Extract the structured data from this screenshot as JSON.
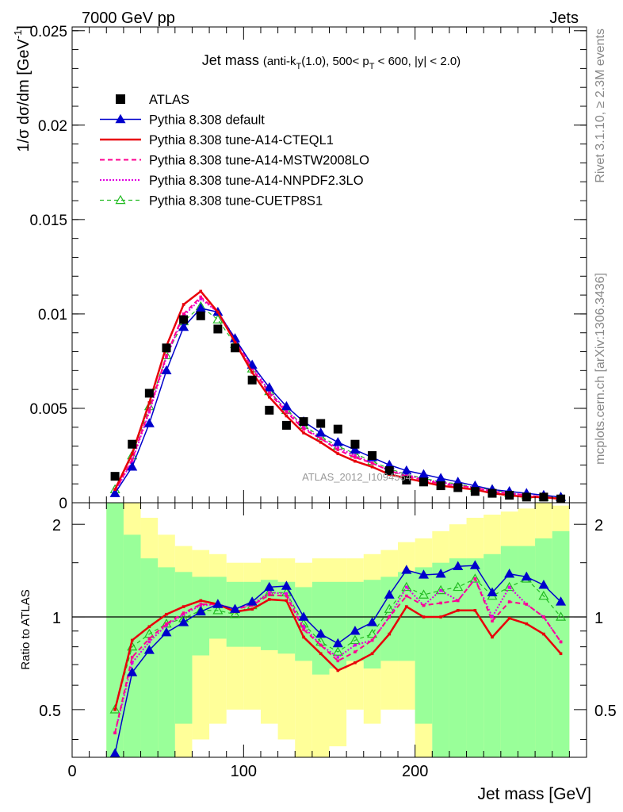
{
  "header": {
    "left": "7000 GeV pp",
    "right": "Jets"
  },
  "side_labels": {
    "rivet": "Rivet 3.1.10, ≥ 2.3M events",
    "mcplots": "mcplots.cern.ch [arXiv:1306.3436]"
  },
  "watermark": "ATLAS_2012_I1094564",
  "colors": {
    "atlas": "#000000",
    "default": "#0000cc",
    "cteql1": "#e8000a",
    "mstw": "#ff0090",
    "nnpdf": "#e000e0",
    "cuetp8s1": "#22bb22",
    "band_inner": "#99ff99",
    "band_outer": "#ffff99"
  },
  "chart_data": [
    {
      "type": "line",
      "title": "Jet mass (anti-k_T(1.0), 500< p_T < 600, |y| < 2.0)",
      "title_parts": {
        "main": "Jet mass",
        "detail_a": "(anti-k",
        "sub_t1": "T",
        "detail_b": "(1.0), 500< p",
        "sub_t2": "T",
        "detail_c": " < 600, |y| < 2.0)"
      },
      "ylabel": "1/σ dσ/dm [GeV⁻¹]",
      "ylabel_parts": {
        "main": "1/σ dσ/dm [GeV",
        "sup": "-1",
        "close": "]"
      },
      "xlim": [
        0,
        300
      ],
      "ylim": [
        0,
        0.0252
      ],
      "yticks": [
        0,
        0.005,
        0.01,
        0.015,
        0.02,
        0.025
      ],
      "ytick_labels": [
        "0",
        "0.005",
        "0.01",
        "0.015",
        "0.02",
        "0.025"
      ],
      "legend_position": "top-left",
      "x": [
        25,
        35,
        45,
        55,
        65,
        75,
        85,
        95,
        105,
        115,
        125,
        135,
        145,
        155,
        165,
        175,
        185,
        195,
        205,
        215,
        225,
        235,
        245,
        255,
        265,
        275,
        285
      ],
      "series": [
        {
          "name": "ATLAS",
          "key": "atlas",
          "style": "markers",
          "values": [
            0.0014,
            0.0031,
            0.0058,
            0.0082,
            0.0097,
            0.0099,
            0.0092,
            0.0082,
            0.0065,
            0.0049,
            0.0041,
            0.0043,
            0.0042,
            0.0039,
            0.0031,
            0.0025,
            0.0017,
            0.0012,
            0.0011,
            0.0009,
            0.0008,
            0.0006,
            0.0005,
            0.0004,
            0.0003,
            0.0003,
            0.0002
          ]
        },
        {
          "name": "Pythia 8.308 default",
          "key": "default",
          "style": "line-tri",
          "values": [
            0.0005,
            0.0019,
            0.0042,
            0.007,
            0.0093,
            0.0103,
            0.0101,
            0.0087,
            0.0073,
            0.0061,
            0.0051,
            0.0043,
            0.0037,
            0.0032,
            0.0028,
            0.0024,
            0.002,
            0.0017,
            0.0015,
            0.0013,
            0.0011,
            0.0009,
            0.0007,
            0.0006,
            0.0005,
            0.0004,
            0.0003
          ]
        },
        {
          "name": "Pythia 8.308 tune-A14-CTEQL1",
          "key": "cteql1",
          "style": "solid",
          "values": [
            0.0007,
            0.0026,
            0.0053,
            0.0083,
            0.0105,
            0.0112,
            0.0101,
            0.0085,
            0.0069,
            0.0056,
            0.0046,
            0.0037,
            0.0032,
            0.0026,
            0.0022,
            0.0019,
            0.0015,
            0.0013,
            0.0011,
            0.0009,
            0.0008,
            0.0007,
            0.0005,
            0.0004,
            0.0003,
            0.0003,
            0.0002
          ]
        },
        {
          "name": "Pythia 8.308 tune-A14-MSTW2008LO",
          "key": "mstw",
          "style": "dashed",
          "values": [
            0.0006,
            0.0023,
            0.0049,
            0.0078,
            0.01,
            0.0109,
            0.0101,
            0.0087,
            0.0071,
            0.0058,
            0.0048,
            0.0039,
            0.0034,
            0.0028,
            0.0024,
            0.0021,
            0.0017,
            0.0014,
            0.0012,
            0.001,
            0.0009,
            0.0008,
            0.0006,
            0.0005,
            0.0004,
            0.0003,
            0.0002
          ]
        },
        {
          "name": "Pythia 8.308 tune-A14-NNPDF2.3LO",
          "key": "nnpdf",
          "style": "dotted",
          "values": [
            0.0006,
            0.0022,
            0.0048,
            0.0077,
            0.0099,
            0.0108,
            0.0101,
            0.0087,
            0.0072,
            0.0059,
            0.0049,
            0.004,
            0.0034,
            0.0029,
            0.0025,
            0.0021,
            0.0017,
            0.0015,
            0.0012,
            0.0011,
            0.0009,
            0.0008,
            0.0006,
            0.0005,
            0.0004,
            0.0003,
            0.0002
          ]
        },
        {
          "name": "Pythia 8.308 tune-CUETP8S1",
          "key": "cuetp8s1",
          "style": "dashed-tri",
          "values": [
            0.0007,
            0.0025,
            0.0051,
            0.0078,
            0.0096,
            0.0104,
            0.0097,
            0.0084,
            0.0071,
            0.0059,
            0.0049,
            0.0041,
            0.0035,
            0.003,
            0.0026,
            0.0022,
            0.0018,
            0.0015,
            0.0013,
            0.0011,
            0.001,
            0.0008,
            0.0007,
            0.0005,
            0.0004,
            0.0003,
            0.0003
          ]
        }
      ]
    },
    {
      "type": "line",
      "ylabel": "Ratio to ATLAS",
      "xlabel": "Jet mass [GeV]",
      "xlim": [
        0,
        300
      ],
      "ylim": [
        0.35,
        2.35
      ],
      "log_y": true,
      "xticks": [
        0,
        100,
        200
      ],
      "xtick_labels": [
        "0",
        "100",
        "200"
      ],
      "yticks": [
        0.5,
        1,
        2
      ],
      "ytick_labels": [
        "0.5",
        "1",
        "2"
      ],
      "x": [
        25,
        35,
        45,
        55,
        65,
        75,
        85,
        95,
        105,
        115,
        125,
        135,
        145,
        155,
        165,
        175,
        185,
        195,
        205,
        215,
        225,
        235,
        245,
        255,
        265,
        275,
        285
      ],
      "bands": {
        "edges": [
          20,
          30,
          40,
          50,
          60,
          70,
          80,
          90,
          100,
          110,
          120,
          130,
          140,
          150,
          160,
          170,
          180,
          190,
          200,
          210,
          220,
          230,
          240,
          250,
          260,
          270,
          280,
          290
        ],
        "inner_low": [
          0.35,
          0.35,
          0.35,
          0.35,
          0.45,
          0.75,
          0.85,
          0.8,
          0.8,
          0.78,
          0.76,
          0.72,
          0.65,
          0.68,
          0.72,
          0.68,
          0.72,
          0.72,
          0.45,
          0.35,
          0.35,
          0.35,
          0.35,
          0.35,
          0.35,
          0.35,
          0.35
        ],
        "inner_high": [
          2.35,
          1.85,
          1.55,
          1.45,
          1.4,
          1.35,
          1.35,
          1.3,
          1.3,
          1.32,
          1.3,
          1.25,
          1.3,
          1.3,
          1.3,
          1.32,
          1.35,
          1.4,
          1.45,
          1.5,
          1.55,
          1.55,
          1.6,
          1.7,
          1.7,
          1.8,
          1.9
        ],
        "outer_low": [
          0.35,
          0.35,
          0.35,
          0.35,
          0.35,
          0.4,
          0.45,
          0.5,
          0.5,
          0.45,
          0.4,
          0.35,
          0.35,
          0.38,
          0.5,
          0.45,
          0.5,
          0.5,
          0.35,
          0.35,
          0.35,
          0.35,
          0.35,
          0.35,
          0.35,
          0.35,
          0.35
        ],
        "outer_high": [
          2.35,
          2.35,
          2.1,
          1.85,
          1.7,
          1.65,
          1.6,
          1.5,
          1.5,
          1.55,
          1.55,
          1.5,
          1.55,
          1.55,
          1.55,
          1.6,
          1.65,
          1.75,
          1.8,
          1.9,
          2.0,
          2.1,
          2.15,
          2.2,
          2.25,
          2.35,
          2.3
        ]
      },
      "series": [
        {
          "name": "Pythia 8.308 default",
          "key": "default",
          "style": "line-tri",
          "values": [
            0.36,
            0.66,
            0.78,
            0.89,
            0.96,
            1.04,
            1.1,
            1.06,
            1.12,
            1.25,
            1.26,
            1.0,
            0.88,
            0.82,
            0.9,
            0.96,
            1.18,
            1.42,
            1.37,
            1.38,
            1.46,
            1.47,
            1.2,
            1.38,
            1.35,
            1.27,
            1.12
          ]
        },
        {
          "name": "Pythia 8.308 tune-A14-CTEQL1",
          "key": "cteql1",
          "style": "solid",
          "values": [
            0.5,
            0.84,
            0.93,
            1.02,
            1.08,
            1.13,
            1.1,
            1.04,
            1.06,
            1.14,
            1.13,
            0.86,
            0.76,
            0.67,
            0.71,
            0.76,
            0.88,
            1.08,
            1.0,
            1.0,
            1.05,
            1.05,
            0.86,
            0.99,
            0.95,
            0.88,
            0.76
          ]
        },
        {
          "name": "Pythia 8.308 tune-A14-MSTW2008LO",
          "key": "mstw",
          "style": "dashed",
          "values": [
            0.42,
            0.74,
            0.85,
            0.95,
            1.03,
            1.1,
            1.1,
            1.06,
            1.09,
            1.18,
            1.17,
            0.91,
            0.81,
            0.72,
            0.77,
            0.84,
            1.0,
            1.17,
            1.09,
            1.11,
            1.13,
            1.33,
            0.97,
            1.12,
            1.1,
            1.0,
            0.83
          ]
        },
        {
          "name": "Pythia 8.308 tune-A14-NNPDF2.3LO",
          "key": "nnpdf",
          "style": "dotted",
          "values": [
            0.42,
            0.71,
            0.83,
            0.94,
            1.02,
            1.09,
            1.1,
            1.06,
            1.1,
            1.2,
            1.19,
            0.93,
            0.81,
            0.74,
            0.81,
            0.84,
            1.0,
            1.25,
            1.09,
            1.22,
            1.13,
            1.33,
            1.0,
            1.25,
            1.1,
            1.0,
            0.83
          ]
        },
        {
          "name": "Pythia 8.308 tune-CUETP8S1",
          "key": "cuetp8s1",
          "style": "dashed-tri",
          "values": [
            0.5,
            0.8,
            0.88,
            0.95,
            0.99,
            1.05,
            1.05,
            1.02,
            1.09,
            1.2,
            1.2,
            0.95,
            0.83,
            0.77,
            0.84,
            0.88,
            1.06,
            1.25,
            1.18,
            1.22,
            1.25,
            1.33,
            1.17,
            1.25,
            1.33,
            1.17,
            1.0
          ]
        }
      ]
    }
  ]
}
